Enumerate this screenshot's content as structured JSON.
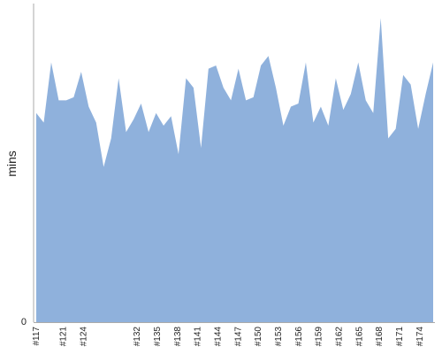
{
  "chart_data": {
    "type": "area",
    "ylabel": "mins",
    "y_zero_label": "0",
    "ylim": [
      0,
      100
    ],
    "grid": false,
    "color": "#8fb1dc",
    "axis_color": "#aaaaaa",
    "x_start": 117,
    "x_end": 176,
    "x_tick_labels": [
      "#117",
      "#121",
      "#124",
      "#132",
      "#135",
      "#138",
      "#141",
      "#144",
      "#147",
      "#150",
      "#153",
      "#156",
      "#159",
      "#162",
      "#165",
      "#168",
      "#171",
      "#174"
    ],
    "values": [
      66,
      63,
      82,
      70,
      70,
      71,
      79,
      68,
      63,
      49,
      58,
      77,
      60,
      64,
      69,
      60,
      66,
      62,
      65,
      53,
      77,
      74,
      55,
      80,
      81,
      74,
      70,
      80,
      70,
      71,
      81,
      84,
      74,
      62,
      68,
      69,
      82,
      63,
      68,
      62,
      77,
      67,
      72,
      82,
      70,
      66,
      96,
      58,
      61,
      78,
      75,
      61,
      72,
      82
    ]
  }
}
